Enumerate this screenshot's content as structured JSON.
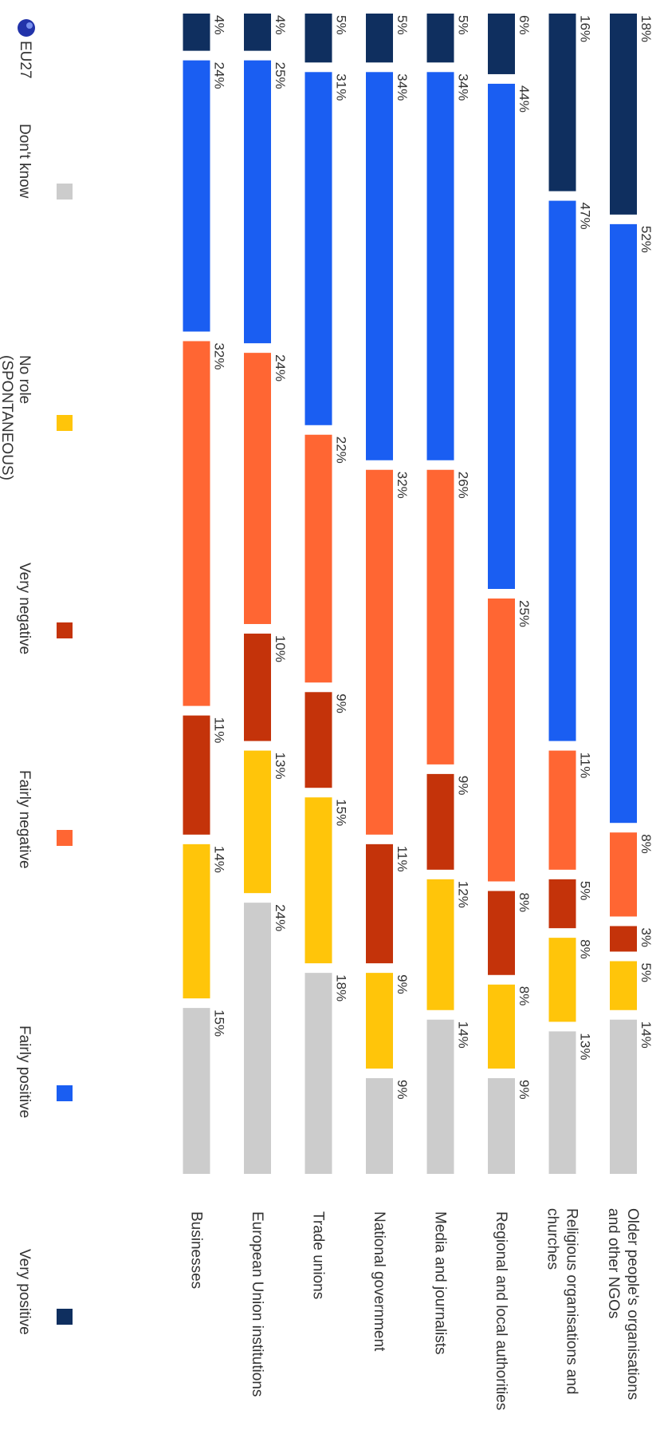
{
  "chart_data": {
    "type": "bar",
    "stacked": true,
    "orientation": "horizontal",
    "rotated_image_degrees": 90,
    "value_unit": "%",
    "categories": [
      "Older people's organisations and other NGOs",
      "Religious organisations and churches",
      "Regional and local authorities",
      "Media and journalists",
      "National government",
      "Trade unions",
      "European Union institutions",
      "Businesses"
    ],
    "category_lines": [
      [
        "Older people's organisations",
        "and other NGOs"
      ],
      [
        "Religious organisations and",
        "churches"
      ],
      [
        "Regional and local authorities"
      ],
      [
        "Media and journalists"
      ],
      [
        "National government"
      ],
      [
        "Trade unions"
      ],
      [
        "European Union institutions"
      ],
      [
        "Businesses"
      ]
    ],
    "series": [
      {
        "name": "Very positive",
        "color": "#0f2f5f",
        "values": [
          18,
          16,
          6,
          5,
          5,
          5,
          4,
          4
        ]
      },
      {
        "name": "Fairly positive",
        "color": "#1a5ef2",
        "values": [
          52,
          47,
          44,
          34,
          34,
          31,
          25,
          24
        ]
      },
      {
        "name": "Fairly negative",
        "color": "#ff6633",
        "values": [
          8,
          11,
          25,
          26,
          32,
          22,
          24,
          32
        ]
      },
      {
        "name": "Very negative",
        "color": "#c4330a",
        "values": [
          3,
          5,
          8,
          9,
          11,
          9,
          10,
          11
        ]
      },
      {
        "name": "No role (SPONTANEOUS)",
        "color": "#ffc50a",
        "values": [
          5,
          8,
          8,
          12,
          9,
          15,
          13,
          14
        ]
      },
      {
        "name": "Don't know",
        "color": "#cccccc",
        "values": [
          14,
          13,
          9,
          14,
          9,
          18,
          24,
          15
        ]
      }
    ],
    "legend": {
      "placement": "bottom",
      "items": [
        {
          "lines": [
            "Very positive"
          ]
        },
        {
          "lines": [
            "Fairly positive"
          ]
        },
        {
          "lines": [
            "Fairly negative"
          ]
        },
        {
          "lines": [
            "Very negative"
          ]
        },
        {
          "lines": [
            "No role",
            "(SPONTANEOUS)"
          ]
        },
        {
          "lines": [
            "Don't know"
          ]
        }
      ]
    },
    "badge": {
      "label": "EU27",
      "color": "#2233aa"
    }
  }
}
